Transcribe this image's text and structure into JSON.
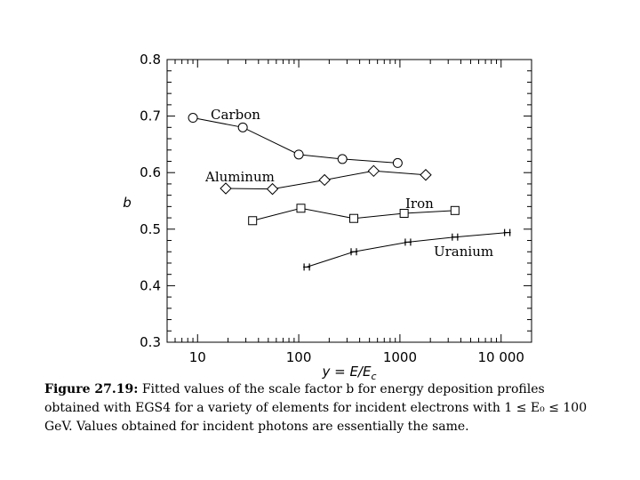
{
  "chart_data": {
    "type": "line",
    "xscale": "log",
    "xlim": [
      5,
      20000
    ],
    "ylim": [
      0.3,
      0.8
    ],
    "xticks": [
      10,
      100,
      1000,
      10000
    ],
    "xtick_labels": [
      "10",
      "100",
      "1000",
      "10 000"
    ],
    "yticks": [
      0.3,
      0.4,
      0.5,
      0.6,
      0.7,
      0.8
    ],
    "ytick_labels": [
      "0.3",
      "0.4",
      "0.5",
      "0.6",
      "0.7",
      "0.8"
    ],
    "xlabel": "y = E/E_c",
    "ylabel": "b",
    "grid": false,
    "series": [
      {
        "name": "Carbon",
        "marker": "circle",
        "x": [
          9,
          28,
          100,
          270,
          950
        ],
        "y": [
          0.697,
          0.68,
          0.632,
          0.624,
          0.617
        ]
      },
      {
        "name": "Aluminum",
        "marker": "diamond",
        "x": [
          19,
          55,
          180,
          550,
          1800
        ],
        "y": [
          0.572,
          0.571,
          0.587,
          0.603,
          0.596
        ]
      },
      {
        "name": "Iron",
        "marker": "square",
        "x": [
          35,
          105,
          350,
          1100,
          3500
        ],
        "y": [
          0.515,
          0.537,
          0.519,
          0.528,
          0.533
        ]
      },
      {
        "name": "Uranium",
        "marker": "star",
        "x": [
          120,
          350,
          1200,
          3500,
          11500
        ],
        "y": [
          0.433,
          0.46,
          0.477,
          0.486,
          0.494
        ]
      }
    ]
  },
  "caption": {
    "figure_id": "Figure 27.19:",
    "text": " Fitted values of the scale factor b for energy deposition profiles obtained with EGS4 for a variety of elements for incident electrons with 1 ≤ E₀ ≤ 100 GeV. Values obtained for incident photons are essentially the same."
  }
}
